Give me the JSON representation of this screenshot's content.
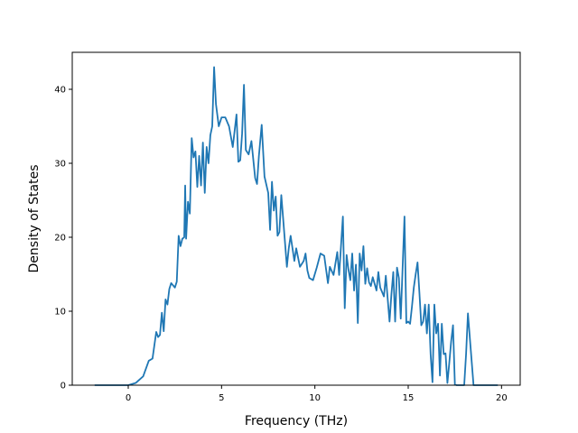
{
  "chart_data": {
    "type": "line",
    "title": "",
    "xlabel": "Frequency (THz)",
    "ylabel": "Density of States",
    "xlim": [
      -3,
      21
    ],
    "ylim": [
      0,
      45
    ],
    "xticks": [
      0,
      5,
      10,
      15,
      20
    ],
    "yticks": [
      0,
      10,
      20,
      30,
      40
    ],
    "grid": false,
    "legend": "none",
    "series": [
      {
        "color": "#1f77b4",
        "x": [
          -1.8,
          0,
          0.4,
          0.8,
          1.1,
          1.3,
          1.5,
          1.6,
          1.7,
          1.8,
          1.9,
          2.0,
          2.1,
          2.2,
          2.3,
          2.4,
          2.5,
          2.6,
          2.7,
          2.8,
          2.9,
          3.0,
          3.05,
          3.1,
          3.2,
          3.3,
          3.4,
          3.5,
          3.6,
          3.7,
          3.8,
          3.9,
          4.0,
          4.1,
          4.2,
          4.3,
          4.4,
          4.5,
          4.6,
          4.7,
          4.85,
          5.0,
          5.2,
          5.4,
          5.6,
          5.8,
          5.9,
          6.0,
          6.1,
          6.2,
          6.3,
          6.45,
          6.6,
          6.8,
          6.9,
          7.0,
          7.15,
          7.3,
          7.5,
          7.6,
          7.7,
          7.8,
          7.9,
          8.0,
          8.1,
          8.2,
          8.3,
          8.5,
          8.6,
          8.7,
          8.9,
          9.0,
          9.2,
          9.4,
          9.5,
          9.6,
          9.7,
          9.9,
          10.1,
          10.3,
          10.5,
          10.7,
          10.8,
          11.0,
          11.2,
          11.3,
          11.5,
          11.6,
          11.7,
          11.8,
          11.9,
          12.0,
          12.1,
          12.2,
          12.3,
          12.4,
          12.5,
          12.6,
          12.7,
          12.8,
          12.9,
          13.0,
          13.1,
          13.3,
          13.4,
          13.5,
          13.7,
          13.8,
          14.0,
          14.1,
          14.2,
          14.3,
          14.4,
          14.5,
          14.6,
          14.8,
          14.9,
          15.0,
          15.1,
          15.2,
          15.3,
          15.4,
          15.5,
          15.6,
          15.7,
          15.8,
          15.9,
          16.0,
          16.1,
          16.2,
          16.3,
          16.4,
          16.5,
          16.6,
          16.7,
          16.8,
          16.9,
          17.0,
          17.1,
          17.2,
          17.3,
          17.4,
          17.5,
          17.6,
          17.8,
          17.9,
          18.0,
          18.1,
          18.2,
          18.5,
          19.0,
          19.8
        ],
        "y": [
          0,
          0,
          0.3,
          1.2,
          3.3,
          3.6,
          7.2,
          6.5,
          6.8,
          9.8,
          7.3,
          11.6,
          10.9,
          13.0,
          13.8,
          13.5,
          13.2,
          14.0,
          20.2,
          18.8,
          19.8,
          20.0,
          27.0,
          19.8,
          24.8,
          23.2,
          33.4,
          30.8,
          31.6,
          26.8,
          31.0,
          27.0,
          32.8,
          26.0,
          32.2,
          30.0,
          33.8,
          35.0,
          43.0,
          38.0,
          35.0,
          36.2,
          36.2,
          35.0,
          32.2,
          36.6,
          30.2,
          30.4,
          34.0,
          40.6,
          31.8,
          31.2,
          33.0,
          28.0,
          27.2,
          31.0,
          35.2,
          28.2,
          26.0,
          21.0,
          27.5,
          23.6,
          25.5,
          20.2,
          20.7,
          25.7,
          22.5,
          16.0,
          18.5,
          20.2,
          16.8,
          18.5,
          16.0,
          16.8,
          17.8,
          15.5,
          14.5,
          14.2,
          15.9,
          17.8,
          17.5,
          13.8,
          16.0,
          14.9,
          18.0,
          14.9,
          22.8,
          10.4,
          17.6,
          15.6,
          14.2,
          17.8,
          12.8,
          16.3,
          8.4,
          17.8,
          15.5,
          18.8,
          13.7,
          15.8,
          13.9,
          13.4,
          14.6,
          12.8,
          15.3,
          13.2,
          12.0,
          14.8,
          8.6,
          12.3,
          15.3,
          8.6,
          15.9,
          14.5,
          9.0,
          22.8,
          8.4,
          8.6,
          8.3,
          10.6,
          13.2,
          15.0,
          16.6,
          12.5,
          8.1,
          8.6,
          10.9,
          7.0,
          10.9,
          4.2,
          0.4,
          10.9,
          7.0,
          8.3,
          1.3,
          8.3,
          4.2,
          4.3,
          0.3,
          3.0,
          5.9,
          8.1,
          0.1,
          0,
          0,
          0,
          0,
          4.2,
          9.7,
          0,
          0,
          0
        ]
      }
    ]
  }
}
